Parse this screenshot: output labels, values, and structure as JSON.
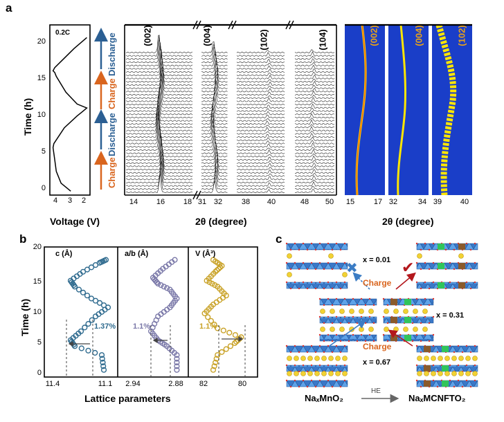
{
  "figure": {
    "panel_a": "a",
    "panel_b": "b",
    "panel_c": "c",
    "rate_label": "0.2C",
    "y_axis_title": "Time (h)",
    "y_ticks": [
      "0",
      "5",
      "10",
      "15",
      "20"
    ],
    "voltage_axis_title": "Voltage (V)",
    "voltage_ticks": [
      "4",
      "3",
      "2"
    ],
    "process_labels": [
      "Charge",
      "Discharge",
      "Charge",
      "Discharge"
    ],
    "xrd_axis_title": "2θ (degree)",
    "xrd_peaks": [
      "(002)",
      "(004)",
      "(102)",
      "(104)"
    ],
    "xrd_ticks_1": [
      "14",
      "16",
      "18"
    ],
    "xrd_ticks_2": [
      "31",
      "32"
    ],
    "xrd_ticks_3": [
      "38",
      "40"
    ],
    "xrd_ticks_4": [
      "48",
      "50"
    ],
    "heatmap_axis_title": "2θ (degree)",
    "heatmap_peaks": [
      "(002)",
      "(004)",
      "(102)"
    ],
    "heatmap_ticks_1": [
      "15",
      "17"
    ],
    "heatmap_ticks_2": [
      "32",
      "34"
    ],
    "heatmap_ticks_3": [
      "39",
      "40"
    ],
    "lattice_axis_title": "Lattice parameters",
    "lattice_panels": [
      {
        "label": "c (Å)",
        "ticks": [
          "11.4",
          "11.1"
        ],
        "change": "1.37%",
        "color": "#2e6a8e"
      },
      {
        "label": "a/b (Å)",
        "ticks": [
          "2.94",
          "2.88"
        ],
        "change": "1.1%",
        "color": "#7a78a8"
      },
      {
        "label": "V (Å³)",
        "ticks": [
          "82",
          "80"
        ],
        "change": "1.1%",
        "color": "#c9a227"
      }
    ],
    "structure_labels": {
      "x1": "x = 0.01",
      "x2": "x = 0.31",
      "x3": "x = 0.67",
      "charge_top": "Charge",
      "charge_bottom": "Charge",
      "left_formula": "NaₓMnO₂",
      "right_formula": "NaₓMCNFTO₂",
      "arrow_label": "HE"
    }
  },
  "chart_data": [
    {
      "type": "line",
      "title": "0.2C",
      "xlabel": "Voltage (V)",
      "ylabel": "Time (h)",
      "xlim": [
        4.3,
        1.8
      ],
      "ylim": [
        -0.5,
        21
      ],
      "series": [
        {
          "x": [
            3.0,
            3.6,
            3.9,
            4.0,
            4.1,
            4.05,
            3.4,
            2.6,
            2.3,
            2.0,
            2.6,
            3.3,
            3.9,
            4.0,
            4.1,
            4.0,
            3.3,
            2.8,
            2.4,
            2.0
          ],
          "y": [
            0.0,
            1.0,
            2.5,
            4.0,
            5.5,
            6.0,
            8.0,
            9.5,
            10.0,
            10.5,
            11.0,
            12.5,
            14.5,
            15.0,
            15.2,
            15.6,
            17.0,
            18.0,
            18.7,
            19.4
          ]
        }
      ]
    },
    {
      "type": "line",
      "title": "",
      "xlabel": "Lattice parameters",
      "ylabel": "Time (h)",
      "ylim": [
        0,
        20
      ],
      "series": [
        {
          "name": "c (Å)",
          "x": [
            11.14,
            11.15,
            11.28,
            11.3,
            11.25,
            11.18,
            11.12,
            11.2,
            11.28,
            11.3,
            11.24,
            11.16,
            11.13
          ],
          "y": [
            0.5,
            3.0,
            4.5,
            5.5,
            7.0,
            9.5,
            11.0,
            12.5,
            14.5,
            15.5,
            17.0,
            18.5,
            19.0
          ]
        },
        {
          "name": "a/b (Å)",
          "x": [
            2.886,
            2.886,
            2.896,
            2.905,
            2.912,
            2.905,
            2.893,
            2.886,
            2.893,
            2.905,
            2.91,
            2.9,
            2.888
          ],
          "y": [
            0.5,
            3.0,
            4.5,
            5.5,
            7.0,
            9.5,
            11.0,
            12.5,
            14.0,
            15.0,
            16.0,
            17.5,
            19.0
          ]
        },
        {
          "name": "V (Å³)",
          "x": [
            81.6,
            81.4,
            80.6,
            80.3,
            81.4,
            82.0,
            81.6,
            81.0,
            81.4,
            81.9,
            81.5,
            81.2,
            81.6
          ],
          "y": [
            0.5,
            3.0,
            5.0,
            6.0,
            7.5,
            10.0,
            11.5,
            13.0,
            14.5,
            15.5,
            17.0,
            18.0,
            19.0
          ]
        }
      ]
    }
  ]
}
